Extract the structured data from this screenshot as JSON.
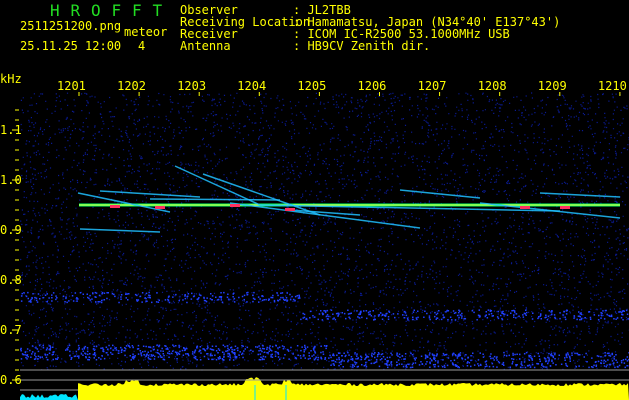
{
  "app": {
    "title_letters": [
      "H",
      "R",
      "O",
      "F",
      "F",
      "T"
    ],
    "filename": "2511251200.png",
    "datetime": "25.11.25 12:00",
    "meteor_label": "meteor",
    "meteor_count": "4"
  },
  "info": [
    {
      "label": "Observer",
      "value": ": JL2TBB"
    },
    {
      "label": "Receiving Location",
      "value": ": Hamamatsu, Japan (N34°40' E137°43')"
    },
    {
      "label": "Receiver",
      "value": ": ICOM IC-R2500 53.1000MHz USB"
    },
    {
      "label": "Antenna",
      "value": ": HB9CV Zenith dir."
    }
  ],
  "colors": {
    "text": "#ffff00",
    "title": "#22dd22",
    "background": "#000000",
    "histogram": "#ffff00",
    "histogram_pre": "#00e5ff",
    "carrier": "#00ff66"
  },
  "chart_data": {
    "type": "heatmap",
    "ylabel": "kHz",
    "x_ticks": [
      "1201",
      "1202",
      "1203",
      "1204",
      "1205",
      "1206",
      "1207",
      "1208",
      "1209",
      "1210"
    ],
    "y_ticks": [
      "1.1",
      "1.0",
      "0.9",
      "0.8",
      "0.7",
      "0.6"
    ],
    "ylim": [
      0.57,
      1.17
    ],
    "carrier_khz": 0.95,
    "meteor_count": 4
  }
}
